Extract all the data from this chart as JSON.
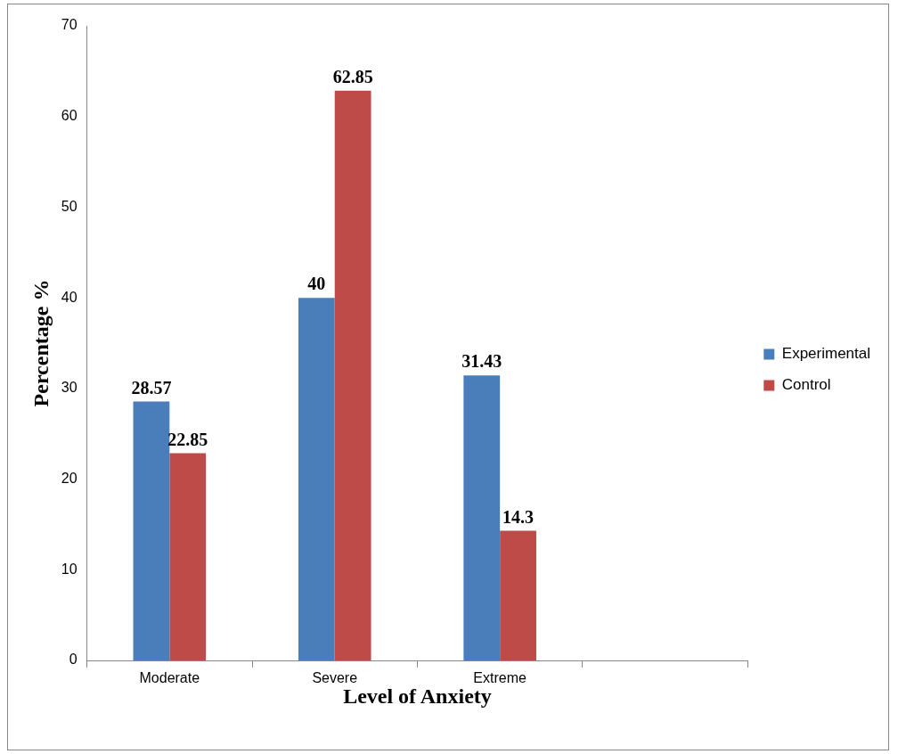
{
  "chart_data": {
    "type": "bar",
    "xlabel": "Level of Anxiety",
    "ylabel": "Percentage %",
    "categories": [
      "Moderate",
      "Severe",
      "Extreme",
      null
    ],
    "series": [
      {
        "name": "Experimental",
        "color": "#4a7ebb",
        "values": [
          28.57,
          40,
          31.43,
          null
        ]
      },
      {
        "name": "Control",
        "color": "#be4b48",
        "values": [
          22.85,
          62.85,
          14.3,
          null
        ]
      }
    ],
    "ylim": [
      0,
      70
    ],
    "yticks": [
      0,
      10,
      20,
      30,
      40,
      50,
      60,
      70
    ],
    "data_labels": true,
    "legend": "right"
  }
}
